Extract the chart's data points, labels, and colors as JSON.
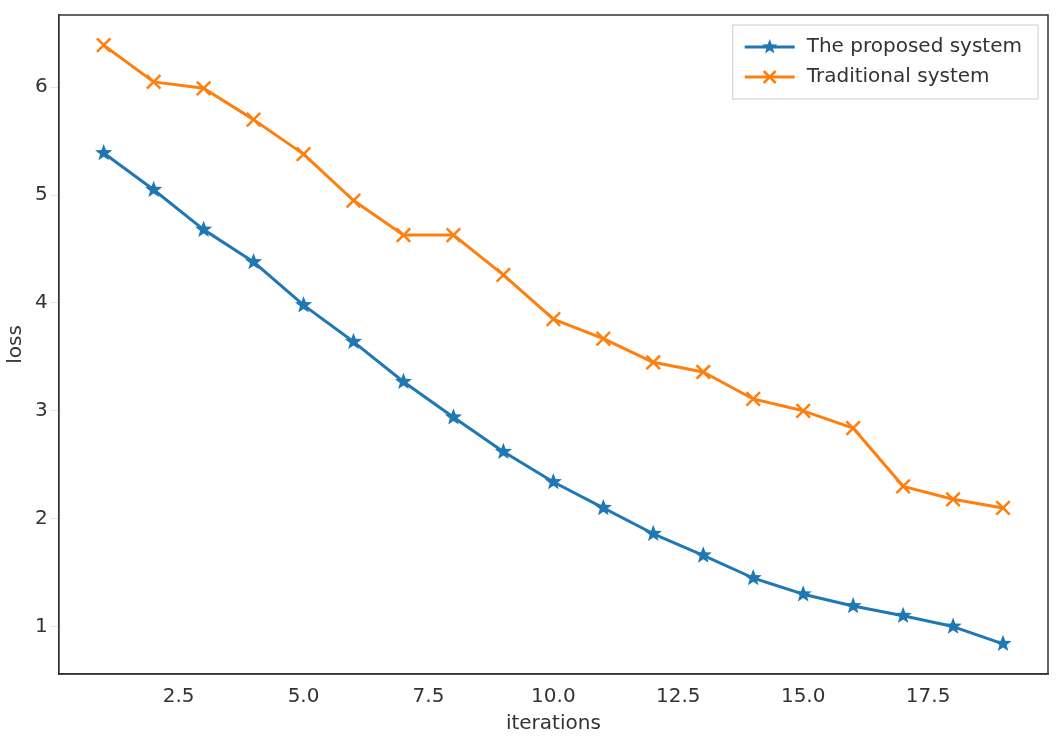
{
  "chart_data": {
    "type": "line",
    "xlabel": "iterations",
    "ylabel": "loss",
    "x": [
      1,
      2,
      3,
      4,
      5,
      6,
      7,
      8,
      9,
      10,
      11,
      12,
      13,
      14,
      15,
      16,
      17,
      18,
      19
    ],
    "series": [
      {
        "name": "The proposed system",
        "color": "#1f77b4",
        "marker": "star",
        "values": [
          5.39,
          5.05,
          4.68,
          4.38,
          3.98,
          3.64,
          3.27,
          2.94,
          2.62,
          2.34,
          2.1,
          1.86,
          1.66,
          1.45,
          1.3,
          1.19,
          1.1,
          1.0,
          0.84
        ]
      },
      {
        "name": "Traditional system",
        "color": "#ff7f0e",
        "marker": "cross",
        "values": [
          6.39,
          6.05,
          5.99,
          5.7,
          5.38,
          4.95,
          4.63,
          4.63,
          4.26,
          3.85,
          3.67,
          3.45,
          3.36,
          3.11,
          3.0,
          2.84,
          2.3,
          2.18,
          2.1
        ]
      }
    ],
    "xlim": [
      0.1,
      19.9
    ],
    "xticks": [
      {
        "value": 2.5,
        "label": "2.5"
      },
      {
        "value": 5,
        "label": "5.0"
      },
      {
        "value": 7.5,
        "label": "7.5"
      },
      {
        "value": 10,
        "label": "10.0"
      },
      {
        "value": 12.5,
        "label": "12.5"
      },
      {
        "value": 15,
        "label": "15.0"
      },
      {
        "value": 17.5,
        "label": "17.5"
      }
    ],
    "ylim": [
      0.56,
      6.67
    ],
    "yticks": [
      1,
      2,
      3,
      4,
      5,
      6
    ],
    "grid": false,
    "legend": "top right",
    "line_style": "solid"
  }
}
